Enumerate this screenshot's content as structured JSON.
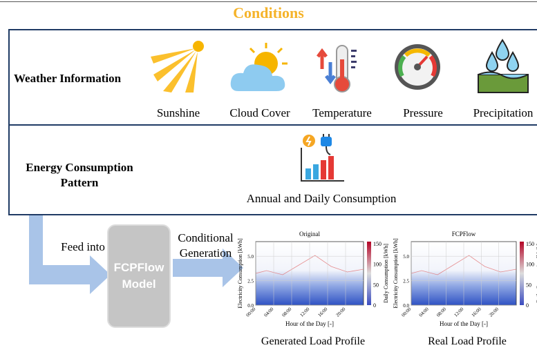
{
  "header": {
    "title": "Conditions"
  },
  "weather": {
    "label": "Weather Information",
    "items": [
      "Sunshine",
      "Cloud Cover",
      "Temperature",
      "Pressure",
      "Precipitation"
    ]
  },
  "energy": {
    "label": "Energy Consumption Pattern",
    "item": "Annual and Daily Consumption"
  },
  "flow": {
    "feed": "Feed into",
    "model": "FCPFlow Model",
    "generation": "Conditional Generation"
  },
  "plots": [
    {
      "title": "Original",
      "caption": "Generated Load Profile",
      "ylabel": "Electricity Consumption [kWh]",
      "xlabel": "Hour of the Day [-]",
      "yticks": [
        "0.0",
        "2.5",
        "5.0"
      ],
      "xticks": [
        "00:00",
        "04:00",
        "08:00",
        "12:00",
        "16:00",
        "20:00"
      ],
      "colorbar_label": "Daily Consumption [kWh]",
      "colorbar_ticks": [
        "0",
        "50",
        "100",
        "150"
      ]
    },
    {
      "title": "FCPFlow",
      "caption": "Real Load Profile",
      "ylabel": "Electricity Consumption [kWh]",
      "xlabel": "Hour of the Day [-]",
      "yticks": [
        "0.0",
        "2.5",
        "5.0"
      ],
      "xticks": [
        "00:00",
        "04:00",
        "08:00",
        "12:00",
        "16:00",
        "20:00"
      ],
      "colorbar_label": "Daily Consumption [kWh]",
      "colorbar_ticks": [
        "0",
        "50",
        "100",
        "150"
      ]
    }
  ]
}
